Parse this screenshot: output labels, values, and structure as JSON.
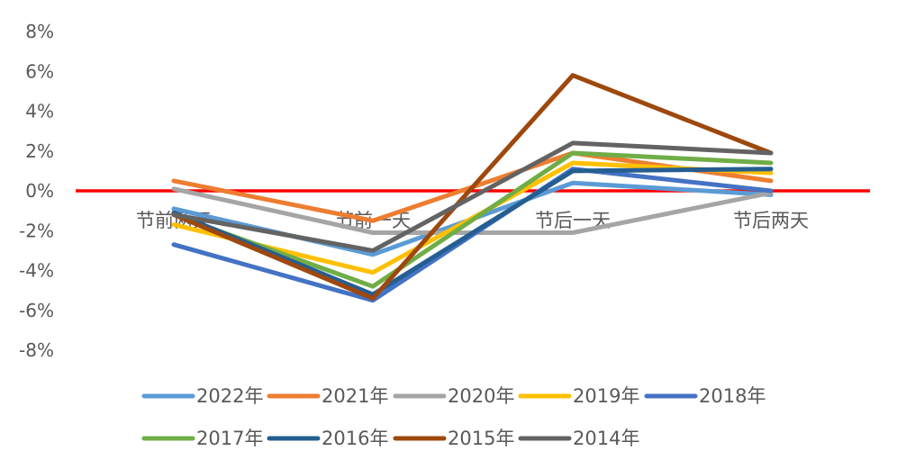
{
  "chart_data": {
    "type": "line",
    "title": "",
    "xlabel": "",
    "ylabel": "",
    "categories": [
      "节前两天",
      "节前一天",
      "节后一天",
      "节后两天"
    ],
    "ylim": [
      -0.08,
      0.08
    ],
    "yticks": [
      {
        "value": 0.08,
        "label": "8%"
      },
      {
        "value": 0.06,
        "label": "6%"
      },
      {
        "value": 0.04,
        "label": "4%"
      },
      {
        "value": 0.02,
        "label": "2%"
      },
      {
        "value": 0.0,
        "label": "0%"
      },
      {
        "value": -0.02,
        "label": "-2%"
      },
      {
        "value": -0.04,
        "label": "-4%"
      },
      {
        "value": -0.06,
        "label": "-6%"
      },
      {
        "value": -0.08,
        "label": "-8%"
      }
    ],
    "grid": false,
    "reference_line": {
      "value": 0,
      "color": "#FF0000"
    },
    "legend_position": "bottom",
    "series": [
      {
        "name": "2022年",
        "color": "#5B9BD5",
        "values": [
          -0.009,
          -0.032,
          0.004,
          -0.002
        ]
      },
      {
        "name": "2021年",
        "color": "#ED7D31",
        "values": [
          0.005,
          -0.015,
          0.019,
          0.005
        ]
      },
      {
        "name": "2020年",
        "color": "#A5A5A5",
        "values": [
          0.001,
          -0.021,
          -0.021,
          -0.001
        ]
      },
      {
        "name": "2019年",
        "color": "#FFC000",
        "values": [
          -0.017,
          -0.041,
          0.014,
          0.009
        ]
      },
      {
        "name": "2018年",
        "color": "#4472C4",
        "values": [
          -0.027,
          -0.055,
          0.011,
          0.0
        ]
      },
      {
        "name": "2017年",
        "color": "#70AD47",
        "values": [
          -0.012,
          -0.048,
          0.019,
          0.014
        ]
      },
      {
        "name": "2016年",
        "color": "#255E91",
        "values": [
          -0.011,
          -0.052,
          0.01,
          0.011
        ]
      },
      {
        "name": "2015年",
        "color": "#9E480E",
        "values": [
          -0.012,
          -0.054,
          0.058,
          0.019
        ]
      },
      {
        "name": "2014年",
        "color": "#636363",
        "values": [
          -0.012,
          -0.03,
          0.024,
          0.019
        ]
      }
    ]
  }
}
